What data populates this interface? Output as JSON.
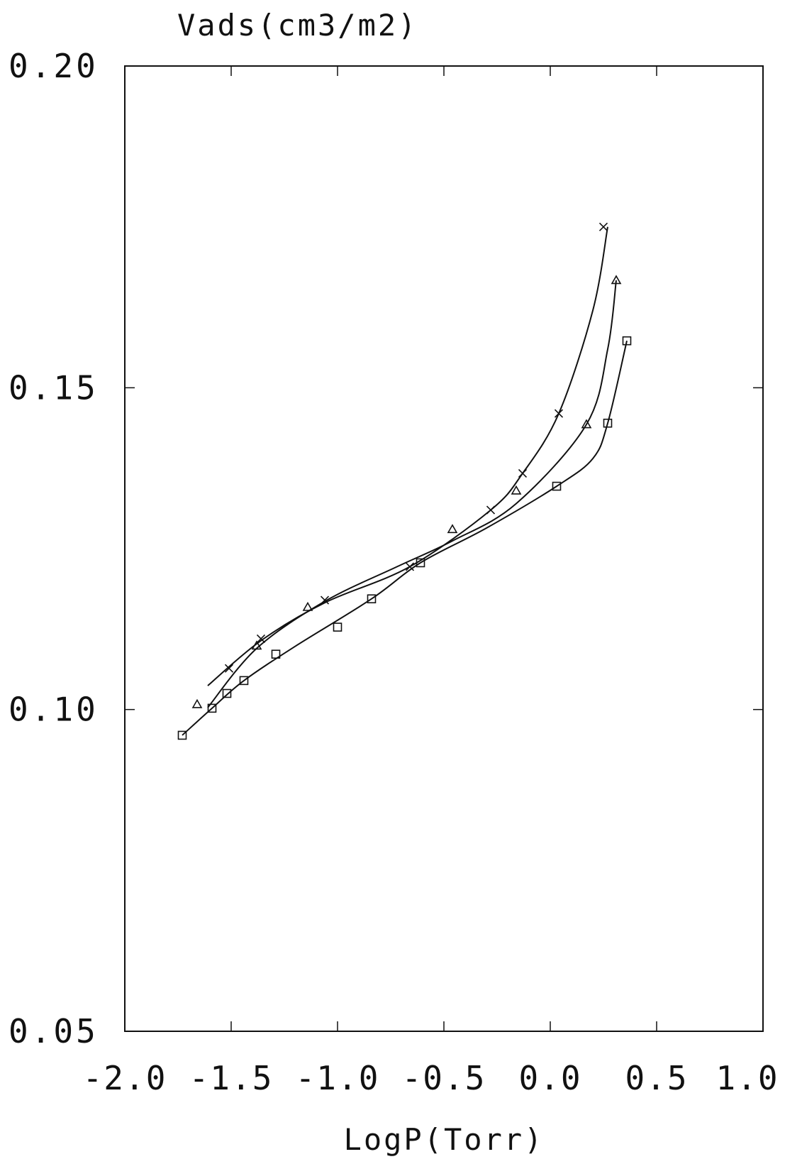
{
  "chart_data": {
    "type": "scatter",
    "title": "",
    "ylabel": "Vads(cm3/m2)",
    "xlabel": "LogP(Torr)",
    "xlim": [
      -2.0,
      1.0
    ],
    "ylim": [
      0.05,
      0.2
    ],
    "xticks": [
      -2.0,
      -1.5,
      -1.0,
      -0.5,
      0.0,
      0.5,
      1.0
    ],
    "xtick_labels": [
      "-2.0",
      "-1.5",
      "-1.0",
      "-0.5",
      "0.0",
      "0.5",
      "1.0"
    ],
    "yticks": [
      0.05,
      0.1,
      0.15,
      0.2
    ],
    "ytick_labels": [
      "0.05",
      "0.10",
      "0.15",
      "0.20"
    ],
    "grid": false,
    "legend": "none",
    "series": [
      {
        "marker": "x",
        "points": [
          {
            "x": -1.51,
            "y": 0.1064
          },
          {
            "x": -1.36,
            "y": 0.111
          },
          {
            "x": -1.06,
            "y": 0.117
          },
          {
            "x": -0.66,
            "y": 0.1222
          },
          {
            "x": -0.28,
            "y": 0.131
          },
          {
            "x": -0.13,
            "y": 0.1367
          },
          {
            "x": 0.04,
            "y": 0.146
          },
          {
            "x": 0.25,
            "y": 0.175
          }
        ],
        "curve": [
          {
            "x": -1.61,
            "y": 0.1037
          },
          {
            "x": -1.36,
            "y": 0.1107
          },
          {
            "x": -1.06,
            "y": 0.1166
          },
          {
            "x": -0.66,
            "y": 0.1222
          },
          {
            "x": -0.28,
            "y": 0.131
          },
          {
            "x": -0.13,
            "y": 0.1367
          },
          {
            "x": 0.04,
            "y": 0.146
          },
          {
            "x": 0.2,
            "y": 0.162
          },
          {
            "x": 0.27,
            "y": 0.175
          }
        ]
      },
      {
        "marker": "triangle",
        "points": [
          {
            "x": -1.66,
            "y": 0.1008
          },
          {
            "x": -1.38,
            "y": 0.1099
          },
          {
            "x": -1.14,
            "y": 0.1159
          },
          {
            "x": -0.46,
            "y": 0.128
          },
          {
            "x": -0.16,
            "y": 0.134
          },
          {
            "x": 0.17,
            "y": 0.1443
          },
          {
            "x": 0.31,
            "y": 0.1667
          }
        ],
        "curve": [
          {
            "x": -1.61,
            "y": 0.1003
          },
          {
            "x": -1.38,
            "y": 0.1095
          },
          {
            "x": -1.06,
            "y": 0.1168
          },
          {
            "x": -0.72,
            "y": 0.1222
          },
          {
            "x": -0.46,
            "y": 0.1262
          },
          {
            "x": -0.16,
            "y": 0.132
          },
          {
            "x": 0.17,
            "y": 0.1443
          },
          {
            "x": 0.27,
            "y": 0.156
          },
          {
            "x": 0.31,
            "y": 0.1667
          }
        ]
      },
      {
        "marker": "square",
        "points": [
          {
            "x": -1.73,
            "y": 0.096
          },
          {
            "x": -1.59,
            "y": 0.1002
          },
          {
            "x": -1.52,
            "y": 0.1025
          },
          {
            "x": -1.44,
            "y": 0.1045
          },
          {
            "x": -1.29,
            "y": 0.1086
          },
          {
            "x": -1.0,
            "y": 0.1128
          },
          {
            "x": -0.84,
            "y": 0.1172
          },
          {
            "x": -0.61,
            "y": 0.1228
          },
          {
            "x": 0.03,
            "y": 0.1347
          },
          {
            "x": 0.27,
            "y": 0.1445
          },
          {
            "x": 0.36,
            "y": 0.1573
          }
        ],
        "curve": [
          {
            "x": -1.73,
            "y": 0.096
          },
          {
            "x": -1.59,
            "y": 0.1002
          },
          {
            "x": -1.44,
            "y": 0.1045
          },
          {
            "x": -1.2,
            "y": 0.1098
          },
          {
            "x": -0.84,
            "y": 0.1172
          },
          {
            "x": -0.61,
            "y": 0.1228
          },
          {
            "x": -0.3,
            "y": 0.1282
          },
          {
            "x": 0.03,
            "y": 0.1347
          },
          {
            "x": 0.2,
            "y": 0.139
          },
          {
            "x": 0.27,
            "y": 0.1445
          },
          {
            "x": 0.36,
            "y": 0.1573
          }
        ]
      }
    ]
  }
}
